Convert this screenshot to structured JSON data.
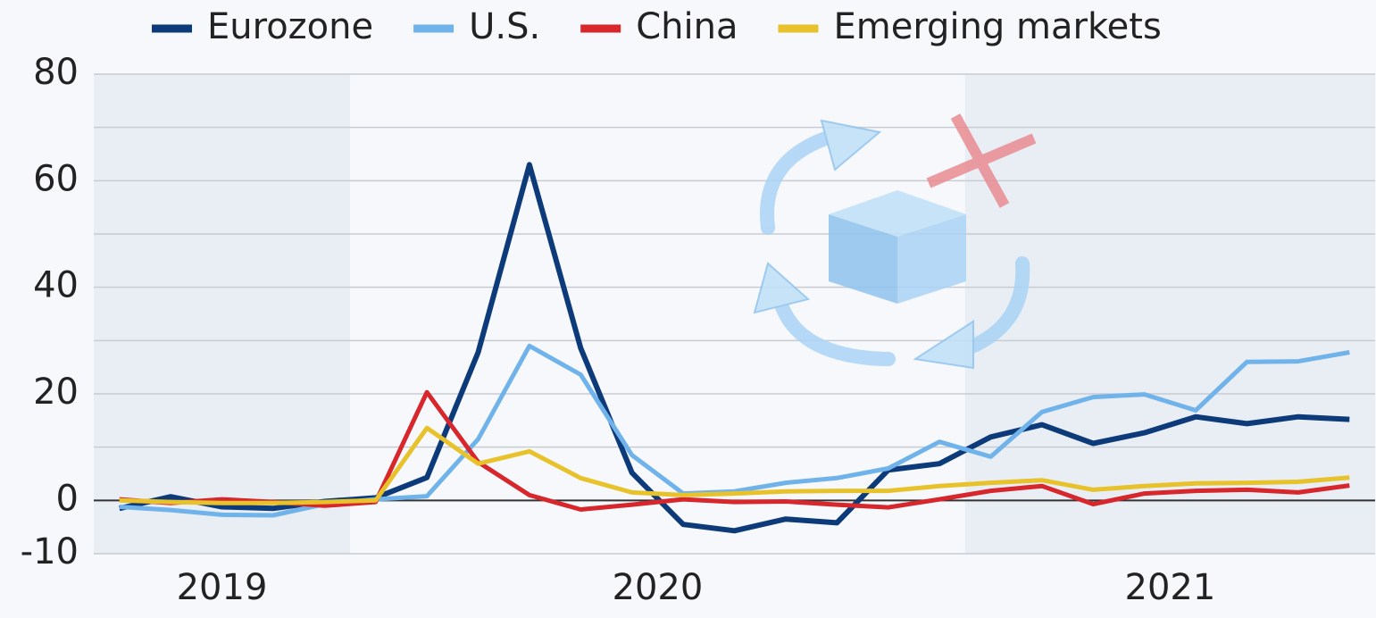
{
  "chart_data": {
    "type": "line",
    "categories": [
      null,
      null,
      null,
      null,
      null,
      null,
      null,
      null,
      null,
      null,
      null,
      null,
      null,
      null,
      null,
      null,
      null,
      null,
      null,
      null,
      null,
      null,
      null,
      null,
      null
    ],
    "x_groups": [
      {
        "label": "2019",
        "count": 5
      },
      {
        "label": "2020",
        "count": 12
      },
      {
        "label": "2021",
        "count": 8
      }
    ],
    "series": [
      {
        "name": "Eurozone",
        "color": "#0d3b7a",
        "values": [
          -1.5,
          0.7,
          -1.2,
          -1.5,
          -0.2,
          0.5,
          4.3,
          27.8,
          63,
          28.6,
          5.2,
          -4.5,
          -5.7,
          -3.5,
          -4.2,
          5.7,
          6.9,
          11.9,
          14.2,
          10.7,
          12.7,
          15.7,
          14.4,
          15.7,
          15.2
        ]
      },
      {
        "name": "U.S.",
        "color": "#6fb3ea",
        "values": [
          -1.2,
          -1.8,
          -2.7,
          -2.8,
          -0.7,
          0.2,
          0.8,
          11.5,
          29,
          23.6,
          8.5,
          1.3,
          1.7,
          3.3,
          4.2,
          6,
          11,
          8.2,
          16.6,
          19.4,
          19.9,
          16.9,
          26,
          26.1,
          27.8
        ]
      },
      {
        "name": "China",
        "color": "#d7262c",
        "values": [
          0.2,
          -0.5,
          0.2,
          -0.3,
          -1,
          -0.3,
          20.3,
          7.2,
          1,
          -1.7,
          -0.8,
          0.2,
          -0.3,
          -0.2,
          -0.8,
          -1.3,
          0.2,
          1.8,
          2.7,
          -0.7,
          1.3,
          1.8,
          2,
          1.5,
          2.8
        ]
      },
      {
        "name": "Emerging markets",
        "color": "#e8c22a",
        "values": [
          0,
          -0.3,
          -0.5,
          -0.5,
          -0.3,
          0,
          13.6,
          6.9,
          9.2,
          4.2,
          1.5,
          1,
          1.3,
          1.7,
          1.8,
          1.8,
          2.7,
          3.3,
          3.8,
          2,
          2.7,
          3.2,
          3.3,
          3.5,
          4.3
        ]
      }
    ],
    "ylim": [
      -10,
      80
    ],
    "yticks": [
      -10,
      0,
      20,
      40,
      60,
      80
    ],
    "minor_yticks": [
      10,
      30,
      50,
      70
    ],
    "grid": true
  }
}
